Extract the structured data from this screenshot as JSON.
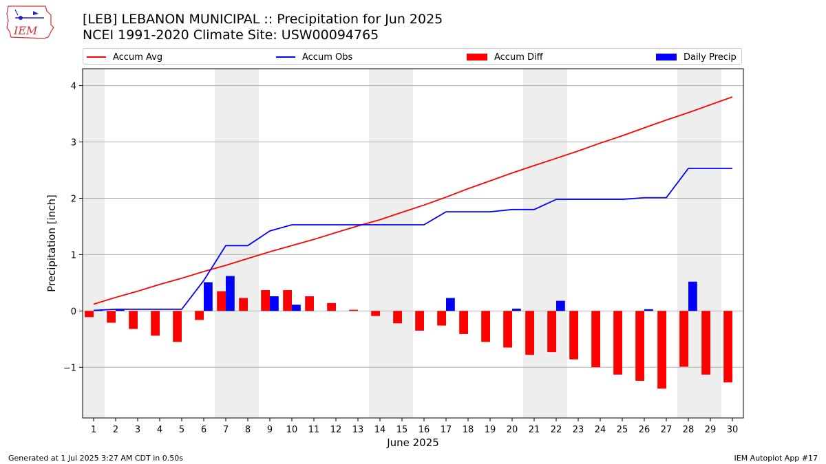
{
  "title_line1": "[LEB] LEBANON MUNICIPAL :: Precipitation for Jun 2025",
  "title_line2": "NCEI 1991-2020 Climate Site: USW00094765",
  "logo_text": "IEM",
  "footer_left": "Generated at 1 Jul 2025 3:27 AM CDT in 0.50s",
  "footer_right": "IEM Autoplot App #17",
  "legend": [
    {
      "label": "Accum Avg",
      "kind": "line",
      "color": "#ff0000"
    },
    {
      "label": "Accum Obs",
      "kind": "line",
      "color": "#0000ff"
    },
    {
      "label": "Accum Diff",
      "kind": "bar",
      "color": "#ff0000"
    },
    {
      "label": "Daily Precip",
      "kind": "bar",
      "color": "#0000ff"
    }
  ],
  "chart_data": {
    "type": "bar",
    "xlabel": "June 2025",
    "ylabel": "Precipitation [inch]",
    "xlim": [
      0.5,
      30.5
    ],
    "ylim": [
      -1.9,
      4.3
    ],
    "yticks": [
      -1,
      0,
      1,
      2,
      3,
      4
    ],
    "ytick_labels": [
      "−1",
      "0",
      "1",
      "2",
      "3",
      "4"
    ],
    "grid": "horizontal",
    "legend_position": "top",
    "weekend_shading": [
      [
        0.5,
        1.5
      ],
      [
        6.5,
        8.5
      ],
      [
        13.5,
        15.5
      ],
      [
        20.5,
        22.5
      ],
      [
        27.5,
        29.5
      ]
    ],
    "categories": [
      "1",
      "2",
      "3",
      "4",
      "5",
      "6",
      "7",
      "8",
      "9",
      "10",
      "11",
      "12",
      "13",
      "14",
      "15",
      "16",
      "17",
      "18",
      "19",
      "20",
      "21",
      "22",
      "23",
      "24",
      "25",
      "26",
      "27",
      "28",
      "29",
      "30"
    ],
    "series": [
      {
        "name": "Accum Avg",
        "kind": "line",
        "color": "#ff0000",
        "values": [
          0.12,
          0.24,
          0.35,
          0.47,
          0.58,
          0.7,
          0.81,
          0.93,
          1.05,
          1.16,
          1.27,
          1.39,
          1.51,
          1.62,
          1.75,
          1.88,
          2.02,
          2.17,
          2.31,
          2.45,
          2.58,
          2.71,
          2.84,
          2.98,
          3.11,
          3.25,
          3.39,
          3.52,
          3.66,
          3.8
        ]
      },
      {
        "name": "Accum Obs",
        "kind": "line",
        "color": "#0000ff",
        "values": [
          0.01,
          0.03,
          0.03,
          0.03,
          0.03,
          0.54,
          1.16,
          1.16,
          1.42,
          1.53,
          1.53,
          1.53,
          1.53,
          1.53,
          1.53,
          1.53,
          1.76,
          1.76,
          1.76,
          1.8,
          1.8,
          1.98,
          1.98,
          1.98,
          1.98,
          2.01,
          2.01,
          2.53,
          2.53,
          2.53
        ]
      },
      {
        "name": "Accum Diff",
        "kind": "bar",
        "color": "#ff0000",
        "values": [
          -0.11,
          -0.21,
          -0.32,
          -0.44,
          -0.55,
          -0.16,
          0.35,
          0.23,
          0.37,
          0.37,
          0.26,
          0.14,
          0.02,
          -0.09,
          -0.22,
          -0.35,
          -0.26,
          -0.41,
          -0.55,
          -0.65,
          -0.78,
          -0.73,
          -0.86,
          -1.0,
          -1.13,
          -1.24,
          -1.38,
          -0.99,
          -1.13,
          -1.27
        ]
      },
      {
        "name": "Daily Precip",
        "kind": "bar",
        "color": "#0000ff",
        "values": [
          0.01,
          0.02,
          0,
          0,
          0,
          0.51,
          0.62,
          0,
          0.26,
          0.11,
          0,
          0,
          0,
          0,
          0,
          0,
          0.23,
          0,
          0,
          0.04,
          0,
          0.18,
          0,
          0,
          0,
          0.03,
          0,
          0.52,
          0,
          0
        ]
      }
    ]
  }
}
